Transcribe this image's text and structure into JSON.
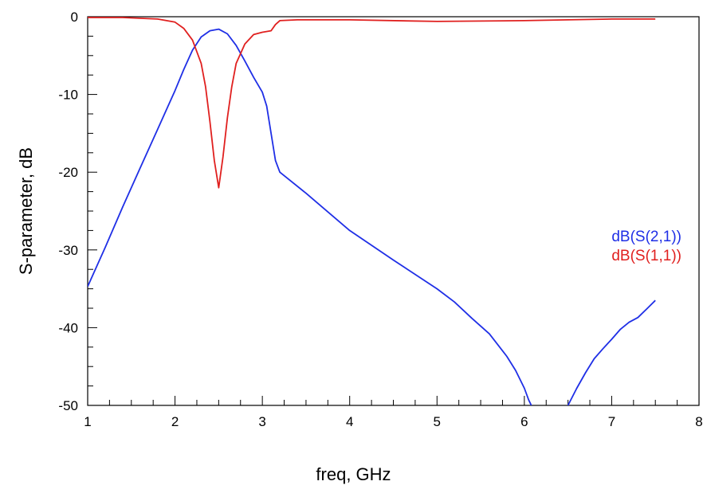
{
  "chart_data": {
    "type": "line",
    "xlabel": "freq, GHz",
    "ylabel": "S-parameter, dB",
    "xlim": [
      1,
      8
    ],
    "ylim": [
      -50,
      0
    ],
    "x_ticks": [
      "1",
      "2",
      "3",
      "4",
      "5",
      "6",
      "7",
      "8"
    ],
    "y_ticks": [
      "0",
      "-10",
      "-20",
      "-30",
      "-40",
      "-50"
    ],
    "grid": false,
    "legend_position": "right",
    "series": [
      {
        "name": "dB(S(2,1))",
        "color": "#1f2fe6",
        "x": [
          1.0,
          1.2,
          1.4,
          1.6,
          1.8,
          2.0,
          2.1,
          2.2,
          2.3,
          2.4,
          2.5,
          2.6,
          2.7,
          2.8,
          2.9,
          3.0,
          3.05,
          3.1,
          3.15,
          3.2,
          3.5,
          4.0,
          4.5,
          5.0,
          5.2,
          5.4,
          5.6,
          5.8,
          5.9,
          6.0,
          6.05,
          6.08
        ],
        "y": [
          -34.7,
          -29.7,
          -24.5,
          -19.5,
          -14.5,
          -9.5,
          -6.8,
          -4.3,
          -2.6,
          -1.8,
          -1.6,
          -2.2,
          -3.7,
          -5.7,
          -7.8,
          -9.7,
          -11.5,
          -15.0,
          -18.5,
          -20.0,
          -22.7,
          -27.5,
          -31.3,
          -35.0,
          -36.7,
          -38.8,
          -40.8,
          -43.7,
          -45.5,
          -47.8,
          -49.3,
          -50.0
        ]
      },
      {
        "name": "dB(S(2,1))",
        "color": "#1f2fe6",
        "x": [
          6.5,
          6.6,
          6.7,
          6.8,
          6.9,
          7.0,
          7.1,
          7.2,
          7.3,
          7.4,
          7.5
        ],
        "y": [
          -50.0,
          -47.8,
          -45.8,
          -44.0,
          -42.7,
          -41.5,
          -40.2,
          -39.3,
          -38.7,
          -37.6,
          -36.5
        ]
      },
      {
        "name": "dB(S(1,1))",
        "color": "#e0201f",
        "x": [
          1.0,
          1.4,
          1.8,
          2.0,
          2.1,
          2.2,
          2.3,
          2.35,
          2.4,
          2.45,
          2.5,
          2.55,
          2.6,
          2.65,
          2.7,
          2.8,
          2.9,
          3.0,
          3.1,
          3.15,
          3.2,
          3.4,
          4.0,
          5.0,
          6.0,
          6.5,
          7.0,
          7.5
        ],
        "y": [
          -0.1,
          -0.1,
          -0.3,
          -0.7,
          -1.5,
          -3.0,
          -6.0,
          -9.0,
          -13.5,
          -18.5,
          -22.0,
          -18.0,
          -13.0,
          -9.0,
          -6.0,
          -3.5,
          -2.3,
          -2.0,
          -1.8,
          -1.0,
          -0.5,
          -0.4,
          -0.4,
          -0.6,
          -0.5,
          -0.4,
          -0.3,
          -0.3
        ]
      }
    ]
  }
}
